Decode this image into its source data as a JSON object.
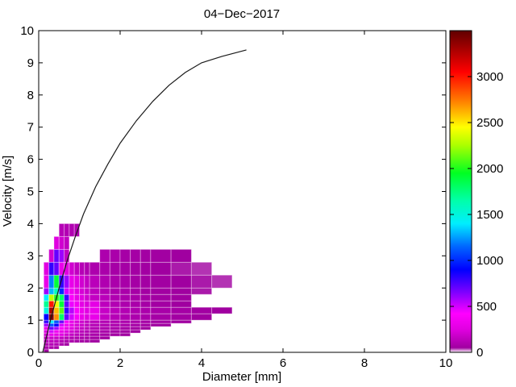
{
  "chart_data": {
    "type": "heatmap",
    "title": "04−Dec−2017",
    "xlabel": "Diameter [mm]",
    "ylabel": "Velocity [m/s]",
    "xlim": [
      0,
      10
    ],
    "ylim": [
      0,
      10
    ],
    "x_ticks": [
      0,
      2,
      4,
      6,
      8,
      10
    ],
    "y_ticks": [
      0,
      1,
      2,
      3,
      4,
      5,
      6,
      7,
      8,
      9,
      10
    ],
    "grid": false,
    "legend": "none",
    "diameter_bin_edges_mm": [
      0.125,
      0.25,
      0.375,
      0.5,
      0.625,
      0.75,
      0.875,
      1.0,
      1.125,
      1.25,
      1.5,
      1.75,
      2.0,
      2.25,
      2.5,
      2.75,
      3.25,
      3.75,
      4.25,
      4.75
    ],
    "velocity_bin_edges_ms": [
      0,
      0.1,
      0.2,
      0.3,
      0.4,
      0.5,
      0.6,
      0.7,
      0.8,
      0.9,
      1.0,
      1.2,
      1.4,
      1.6,
      1.8,
      2.0,
      2.4,
      2.8,
      3.2,
      3.6,
      4.0
    ],
    "counts_rows_bottom_to_top": [
      [
        60,
        0,
        0,
        0,
        0,
        0,
        0,
        0,
        0,
        0,
        0,
        0,
        0,
        0,
        0,
        0,
        0,
        0,
        0
      ],
      [
        80,
        90,
        70,
        0,
        0,
        0,
        0,
        0,
        0,
        0,
        0,
        0,
        0,
        0,
        0,
        0,
        0,
        0,
        0
      ],
      [
        100,
        120,
        110,
        90,
        60,
        0,
        0,
        0,
        0,
        0,
        0,
        0,
        0,
        0,
        0,
        0,
        0,
        0,
        0
      ],
      [
        120,
        140,
        130,
        110,
        90,
        80,
        70,
        60,
        60,
        50,
        0,
        0,
        0,
        0,
        0,
        0,
        0,
        0,
        0
      ],
      [
        140,
        180,
        170,
        150,
        120,
        100,
        90,
        80,
        70,
        60,
        50,
        0,
        0,
        0,
        0,
        0,
        0,
        0,
        0
      ],
      [
        200,
        300,
        280,
        250,
        200,
        160,
        130,
        110,
        90,
        80,
        70,
        60,
        50,
        0,
        0,
        0,
        0,
        0,
        0
      ],
      [
        250,
        500,
        350,
        300,
        250,
        200,
        160,
        130,
        110,
        90,
        80,
        70,
        60,
        50,
        0,
        0,
        0,
        0,
        0
      ],
      [
        300,
        700,
        600,
        400,
        300,
        250,
        200,
        160,
        130,
        110,
        90,
        80,
        70,
        60,
        50,
        0,
        0,
        0,
        0
      ],
      [
        600,
        1100,
        900,
        500,
        350,
        280,
        220,
        180,
        140,
        120,
        100,
        90,
        80,
        70,
        60,
        50,
        0,
        0,
        0
      ],
      [
        800,
        1400,
        1100,
        700,
        400,
        300,
        230,
        190,
        150,
        130,
        110,
        100,
        90,
        80,
        70,
        60,
        50,
        0,
        0
      ],
      [
        900,
        3400,
        2700,
        1800,
        700,
        500,
        380,
        300,
        250,
        300,
        160,
        120,
        100,
        90,
        80,
        70,
        60,
        50,
        0
      ],
      [
        1500,
        3300,
        2600,
        2100,
        800,
        550,
        400,
        320,
        260,
        310,
        170,
        130,
        110,
        95,
        85,
        75,
        65,
        55,
        50
      ],
      [
        1700,
        3000,
        2400,
        1900,
        700,
        450,
        350,
        280,
        230,
        280,
        140,
        110,
        90,
        80,
        70,
        60,
        50,
        0,
        0
      ],
      [
        1400,
        2300,
        2000,
        1800,
        800,
        400,
        300,
        250,
        200,
        160,
        130,
        100,
        85,
        75,
        65,
        55,
        50,
        0,
        0
      ],
      [
        600,
        1300,
        1600,
        1000,
        500,
        350,
        280,
        220,
        180,
        140,
        110,
        90,
        80,
        70,
        60,
        55,
        50,
        45,
        0
      ],
      [
        300,
        1200,
        1900,
        800,
        600,
        300,
        250,
        200,
        160,
        130,
        100,
        85,
        75,
        65,
        60,
        55,
        50,
        45,
        40
      ],
      [
        250,
        800,
        700,
        300,
        250,
        200,
        150,
        120,
        100,
        90,
        80,
        70,
        65,
        60,
        55,
        50,
        45,
        40,
        0
      ],
      [
        0,
        200,
        700,
        600,
        150,
        0,
        0,
        0,
        0,
        0,
        90,
        80,
        70,
        65,
        60,
        55,
        50,
        0,
        0
      ],
      [
        0,
        0,
        250,
        200,
        150,
        0,
        0,
        0,
        0,
        0,
        0,
        0,
        0,
        0,
        0,
        0,
        0,
        0,
        0
      ],
      [
        0,
        0,
        0,
        120,
        110,
        100,
        90,
        0,
        0,
        0,
        0,
        0,
        0,
        0,
        0,
        0,
        0,
        0,
        0
      ]
    ],
    "curve": {
      "name": "terminal-velocity-curve",
      "color": "#1a1a1a",
      "points": [
        [
          0.1,
          0.0
        ],
        [
          0.3,
          1.05
        ],
        [
          0.5,
          2.0
        ],
        [
          0.7,
          2.85
        ],
        [
          0.9,
          3.6
        ],
        [
          1.1,
          4.3
        ],
        [
          1.4,
          5.15
        ],
        [
          1.7,
          5.85
        ],
        [
          2.0,
          6.5
        ],
        [
          2.4,
          7.2
        ],
        [
          2.8,
          7.8
        ],
        [
          3.2,
          8.3
        ],
        [
          3.6,
          8.7
        ],
        [
          4.0,
          9.0
        ],
        [
          4.5,
          9.2
        ],
        [
          5.1,
          9.4
        ]
      ]
    },
    "colorbar": {
      "vmin": 0,
      "vmax": 3500,
      "tick_values": [
        0,
        500,
        1000,
        1500,
        2000,
        2500,
        3000
      ],
      "colormap_stops": [
        {
          "v": 0,
          "c": "#ffffff"
        },
        {
          "v": 50,
          "c": "#a000a0"
        },
        {
          "v": 250,
          "c": "#e000e0"
        },
        {
          "v": 420,
          "c": "#ff00ff"
        },
        {
          "v": 650,
          "c": "#8000ff"
        },
        {
          "v": 900,
          "c": "#0000ff"
        },
        {
          "v": 1150,
          "c": "#0066ff"
        },
        {
          "v": 1400,
          "c": "#00eeff"
        },
        {
          "v": 1650,
          "c": "#00ffaa"
        },
        {
          "v": 1950,
          "c": "#00ff22"
        },
        {
          "v": 2250,
          "c": "#aaff00"
        },
        {
          "v": 2450,
          "c": "#ffff00"
        },
        {
          "v": 2750,
          "c": "#ff7700"
        },
        {
          "v": 3050,
          "c": "#ff0000"
        },
        {
          "v": 3500,
          "c": "#600000"
        }
      ]
    }
  },
  "layout_colors": {
    "background": "#ffffff",
    "axis": "#000000"
  }
}
